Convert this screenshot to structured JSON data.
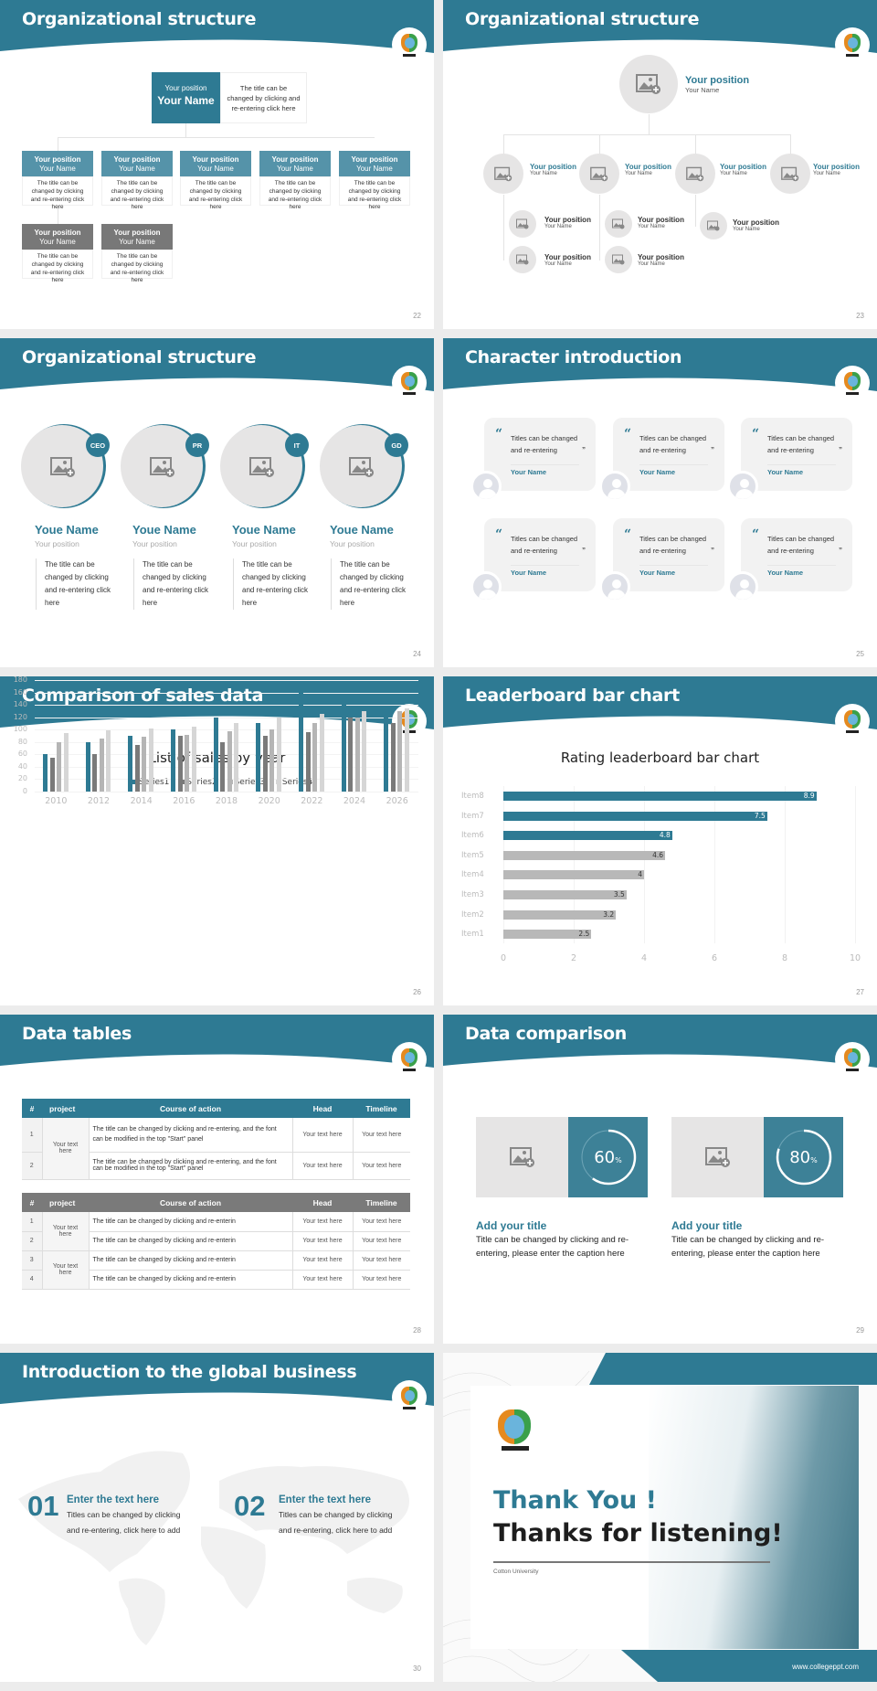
{
  "theme": {
    "accent": "#2e7a93",
    "gray_dark": "#7a7a7a",
    "gray_mid": "#b5b5b5",
    "gray_light": "#d6d6d6",
    "background": "#ececec"
  },
  "slides": {
    "s22": {
      "title": "Organizational structure",
      "page": "22",
      "top": {
        "position": "Your position",
        "name": "Your Name",
        "desc": "The title can be changed by clicking and re-entering click here"
      },
      "level2": [
        {
          "position": "Your position",
          "name": "Your Name",
          "desc": "The title can be changed by clicking and re-entering click here"
        },
        {
          "position": "Your position",
          "name": "Your Name",
          "desc": "The title can be changed by clicking and re-entering click here"
        },
        {
          "position": "Your position",
          "name": "Your Name",
          "desc": "The title can be changed by clicking and re-entering click here"
        },
        {
          "position": "Your position",
          "name": "Your Name",
          "desc": "The title can be changed by clicking and re-entering click here"
        },
        {
          "position": "Your position",
          "name": "Your Name",
          "desc": "The title can be changed by clicking and re-entering click here"
        }
      ],
      "level3": [
        {
          "position": "Your position",
          "name": "Your Name",
          "desc": "The title can be changed by clicking and re-entering click here"
        },
        {
          "position": "Your position",
          "name": "Your Name",
          "desc": "The title can be changed by clicking and re-entering click here"
        }
      ]
    },
    "s23": {
      "title": "Organizational structure",
      "page": "23",
      "top": {
        "position": "Your position",
        "name": "Your Name"
      },
      "level2": [
        {
          "position": "Your position",
          "name": "Your Name"
        },
        {
          "position": "Your position",
          "name": "Your Name"
        },
        {
          "position": "Your position",
          "name": "Your Name"
        },
        {
          "position": "Your position",
          "name": "Your Name"
        }
      ],
      "level3": [
        {
          "position": "Your position",
          "name": "Your Name"
        },
        {
          "position": "Your position",
          "name": "Your Name"
        },
        {
          "position": "Your position",
          "name": "Your Name"
        },
        {
          "position": "Your position",
          "name": "Your Name"
        },
        {
          "position": "Your position",
          "name": "Your Name"
        }
      ]
    },
    "s24": {
      "title": "Organizational structure",
      "page": "24",
      "members": [
        {
          "badge": "CEO",
          "name": "Youe Name",
          "position": "Your position",
          "desc": "The title can be changed by clicking and re-entering click here"
        },
        {
          "badge": "PR",
          "name": "Youe Name",
          "position": "Your position",
          "desc": "The title can be changed by clicking and re-entering click here"
        },
        {
          "badge": "IT",
          "name": "Youe Name",
          "position": "Your position",
          "desc": "The title can be changed by clicking and re-entering click here"
        },
        {
          "badge": "GD",
          "name": "Youe Name",
          "position": "Your position",
          "desc": "The title can be changed by clicking and re-entering click here"
        }
      ]
    },
    "s25": {
      "title": "Character introduction",
      "page": "25",
      "cards": [
        {
          "quote": "Titles can be changed and re-entering",
          "name": "Your Name"
        },
        {
          "quote": "Titles can be changed and re-entering",
          "name": "Your Name"
        },
        {
          "quote": "Titles can be changed and re-entering",
          "name": "Your Name"
        },
        {
          "quote": "Titles can be changed and re-entering",
          "name": "Your Name"
        },
        {
          "quote": "Titles can be changed and re-entering",
          "name": "Your Name"
        },
        {
          "quote": "Titles can be changed and re-entering",
          "name": "Your Name"
        }
      ],
      "open_quote": "“",
      "close_quote": "”"
    },
    "s26": {
      "title": "Comparison of sales data",
      "page": "26"
    },
    "s27": {
      "title": "Leaderboard bar chart",
      "page": "27"
    },
    "s28": {
      "title": "Data tables",
      "page": "28",
      "table1": {
        "headers": [
          "#",
          "project",
          "Course of action",
          "Head",
          "Timeline"
        ],
        "group": "Your text here",
        "rows": [
          {
            "num": "1",
            "action": "The title can be changed by clicking and re-entering, and the font can be modified in the top \"Start\" panel",
            "head": "Your text here",
            "timeline": "Your text here"
          },
          {
            "num": "2",
            "action": "The title can be changed by clicking and re-entering, and the font can be modified in the top \"Start\" panel",
            "head": "Your text here",
            "timeline": "Your text here"
          }
        ]
      },
      "table2": {
        "headers": [
          "#",
          "project",
          "Course of action",
          "Head",
          "Timeline"
        ],
        "groups": [
          "Your text here",
          "Your text here"
        ],
        "rows": [
          {
            "num": "1",
            "action": "The title can be changed by clicking and re-enterin",
            "head": "Your text here",
            "timeline": "Your text here"
          },
          {
            "num": "2",
            "action": "The title can be changed by clicking and re-enterin",
            "head": "Your text here",
            "timeline": "Your text here"
          },
          {
            "num": "3",
            "action": "The title can be changed by clicking and re-enterin",
            "head": "Your text here",
            "timeline": "Your text here"
          },
          {
            "num": "4",
            "action": "The title can be changed by clicking and re-enterin",
            "head": "Your text here",
            "timeline": "Your text here"
          }
        ]
      }
    },
    "s29": {
      "title": "Data comparison",
      "page": "29",
      "items": [
        {
          "percent": "60",
          "unit": "%",
          "value": 60,
          "title": "Add your title",
          "desc": "Title can be changed by clicking and re-entering, please enter the caption here"
        },
        {
          "percent": "80",
          "unit": "%",
          "value": 80,
          "title": "Add your title",
          "desc": "Title can be changed by clicking and re-entering, please enter the caption here"
        }
      ]
    },
    "s30": {
      "title": "Introduction to the global business",
      "page": "30",
      "items": [
        {
          "num": "01",
          "title": "Enter the text here",
          "desc": "Titles can be changed by clicking and re-entering, click here to add"
        },
        {
          "num": "02",
          "title": "Enter the text here",
          "desc": "Titles can be changed by clicking and re-entering, click here to add"
        }
      ]
    },
    "s31": {
      "thank_you": "Thank You !",
      "thanks_listening": "Thanks for listening!",
      "university": "Cotton University",
      "website": "www.collegeppt.com"
    }
  },
  "chart_data": [
    {
      "type": "bar",
      "title": "List of sales by year",
      "categories": [
        "2010",
        "2012",
        "2014",
        "2016",
        "2018",
        "2020",
        "2022",
        "2024",
        "2026"
      ],
      "series": [
        {
          "name": "Series1",
          "color": "#2e7a93",
          "values": [
            60,
            80,
            90,
            100,
            120,
            110,
            160,
            150,
            130
          ]
        },
        {
          "name": "Series2",
          "color": "#7a7a7a",
          "values": [
            55,
            60,
            75,
            90,
            80,
            90,
            96,
            120,
            110
          ]
        },
        {
          "name": "Series3",
          "color": "#b5b5b5",
          "values": [
            80,
            86,
            88,
            92,
            98,
            100,
            110,
            120,
            130
          ]
        },
        {
          "name": "Series4",
          "color": "#d6d6d6",
          "values": [
            95,
            99,
            102,
            105,
            110,
            120,
            126,
            130,
            135
          ]
        }
      ],
      "xlabel": "",
      "ylabel": "",
      "ylim": [
        0,
        180
      ],
      "yticks": [
        0,
        20,
        40,
        60,
        80,
        100,
        120,
        140,
        160,
        180
      ],
      "legend_position": "top",
      "grid": true
    },
    {
      "type": "bar",
      "orientation": "horizontal",
      "title": "Rating leaderboard bar chart",
      "categories": [
        "Item8",
        "Item7",
        "Item6",
        "Item5",
        "Item4",
        "Item3",
        "Item2",
        "Item1"
      ],
      "values": [
        8.9,
        7.5,
        4.8,
        4.6,
        4,
        3.5,
        3.2,
        2.5
      ],
      "labels": [
        "8.9",
        "7.5",
        "4.8",
        "4.6",
        "4",
        "3.5",
        "3.2",
        "2.5"
      ],
      "colors": [
        "#2e7a93",
        "#2e7a93",
        "#2e7a93",
        "#b8b8b8",
        "#b8b8b8",
        "#b8b8b8",
        "#b8b8b8",
        "#b8b8b8"
      ],
      "xlim": [
        0,
        10
      ],
      "xticks": [
        "0",
        "2",
        "4",
        "6",
        "8",
        "10"
      ],
      "grid": true
    }
  ]
}
